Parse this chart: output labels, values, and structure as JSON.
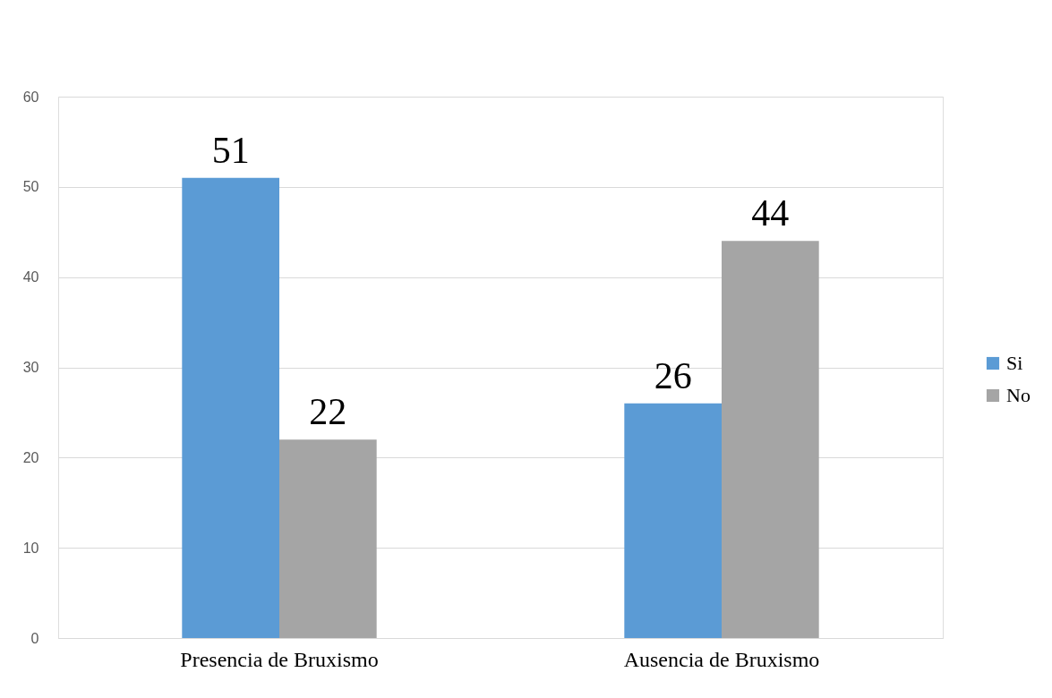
{
  "chart_data": {
    "type": "bar",
    "categories": [
      "Presencia de Bruxismo",
      "Ausencia de Bruxismo"
    ],
    "series": [
      {
        "name": "Si",
        "color": "#5b9bd5",
        "values": [
          51,
          26
        ]
      },
      {
        "name": "No",
        "color": "#a5a5a5",
        "values": [
          22,
          44
        ]
      }
    ],
    "ylim": [
      0,
      60
    ],
    "yticks": [
      0,
      10,
      20,
      30,
      40,
      50,
      60
    ],
    "grid": "y",
    "legend": "right",
    "data_labels": true
  }
}
